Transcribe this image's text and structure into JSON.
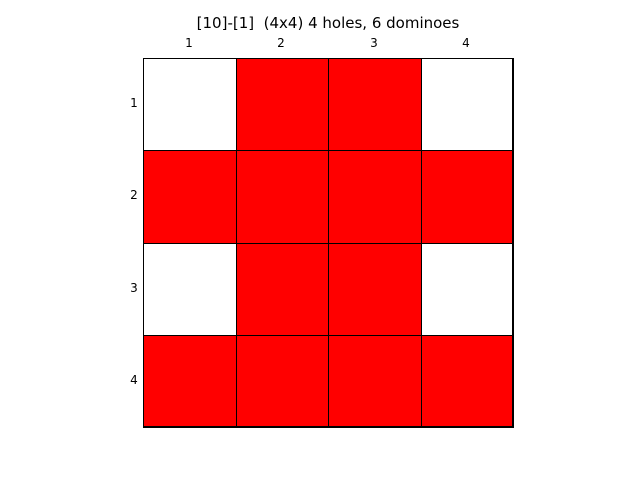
{
  "title": "[10]-[1]  (4x4) 4 holes, 6 dominoes",
  "board": {
    "rows": 4,
    "cols": 4,
    "column_labels": [
      "1",
      "2",
      "3",
      "4"
    ],
    "row_labels": [
      "1",
      "2",
      "3",
      "4"
    ],
    "cells": [
      [
        "hole",
        "filled",
        "filled",
        "hole"
      ],
      [
        "filled",
        "filled",
        "filled",
        "filled"
      ],
      [
        "hole",
        "filled",
        "filled",
        "hole"
      ],
      [
        "filled",
        "filled",
        "filled",
        "filled"
      ]
    ],
    "colors": {
      "filled": "#ff0000",
      "hole": "#ffffff",
      "grid": "#000000"
    }
  }
}
